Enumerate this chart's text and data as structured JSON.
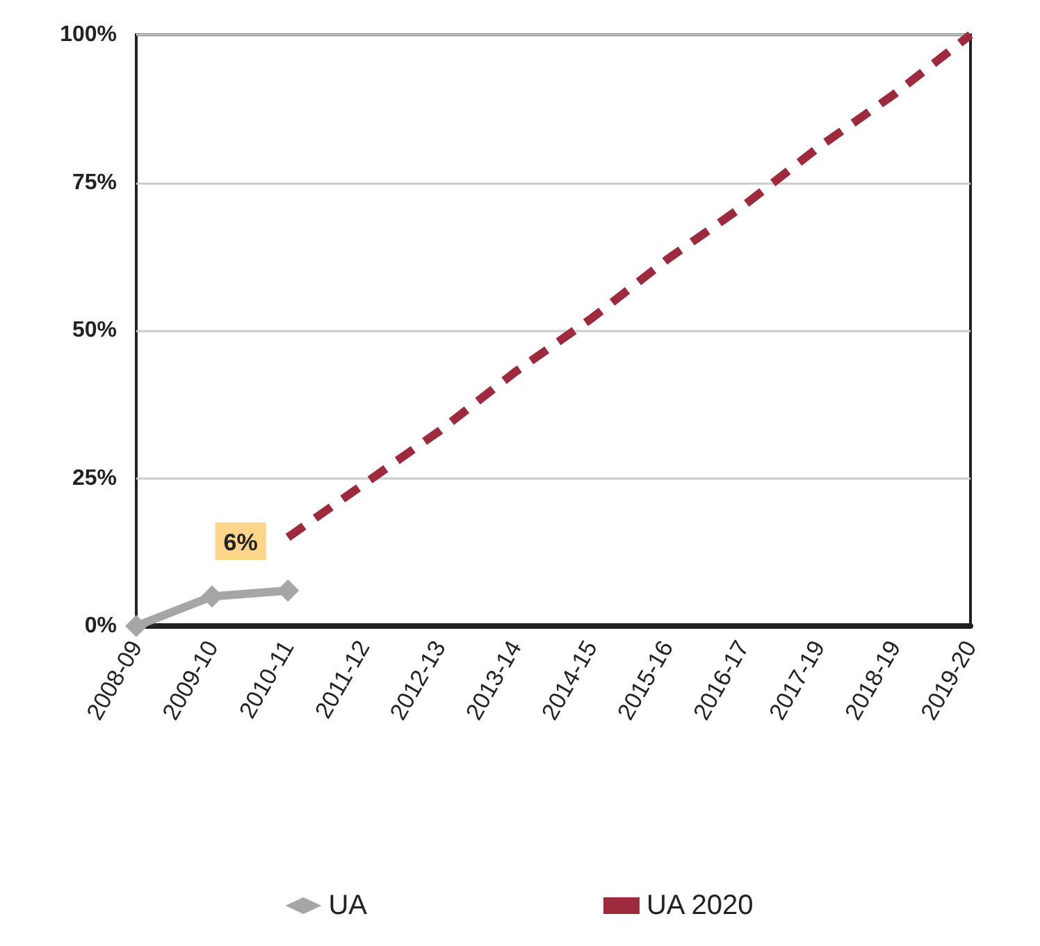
{
  "chart_data": {
    "type": "line",
    "categories": [
      "2008-09",
      "2009-10",
      "2010-11",
      "2011-12",
      "2012-13",
      "2013-14",
      "2014-15",
      "2015-16",
      "2016-17",
      "2017-19",
      "2018-19",
      "2019-20"
    ],
    "series": [
      {
        "name": "UA",
        "color": "#a6a6a6",
        "values": [
          0,
          5,
          6,
          null,
          null,
          null,
          null,
          null,
          null,
          null,
          null,
          null
        ],
        "marker": "diamond",
        "line_style": "solid",
        "value_labels": [
          null,
          null,
          "6%",
          null,
          null,
          null,
          null,
          null,
          null,
          null,
          null,
          null
        ]
      },
      {
        "name": "UA 2020",
        "color": "#9e2a3d",
        "values": [
          null,
          null,
          15,
          24,
          33,
          43,
          52,
          62,
          71,
          81,
          90,
          100
        ],
        "marker": "none",
        "line_style": "dashed"
      }
    ],
    "ylim": [
      0,
      100
    ],
    "yticks": [
      {
        "value": 0,
        "label": "0%"
      },
      {
        "value": 25,
        "label": "25%"
      },
      {
        "value": 50,
        "label": "50%"
      },
      {
        "value": 75,
        "label": "75%"
      },
      {
        "value": 100,
        "label": "100%"
      }
    ],
    "grid": "y",
    "legend": "bottom"
  }
}
